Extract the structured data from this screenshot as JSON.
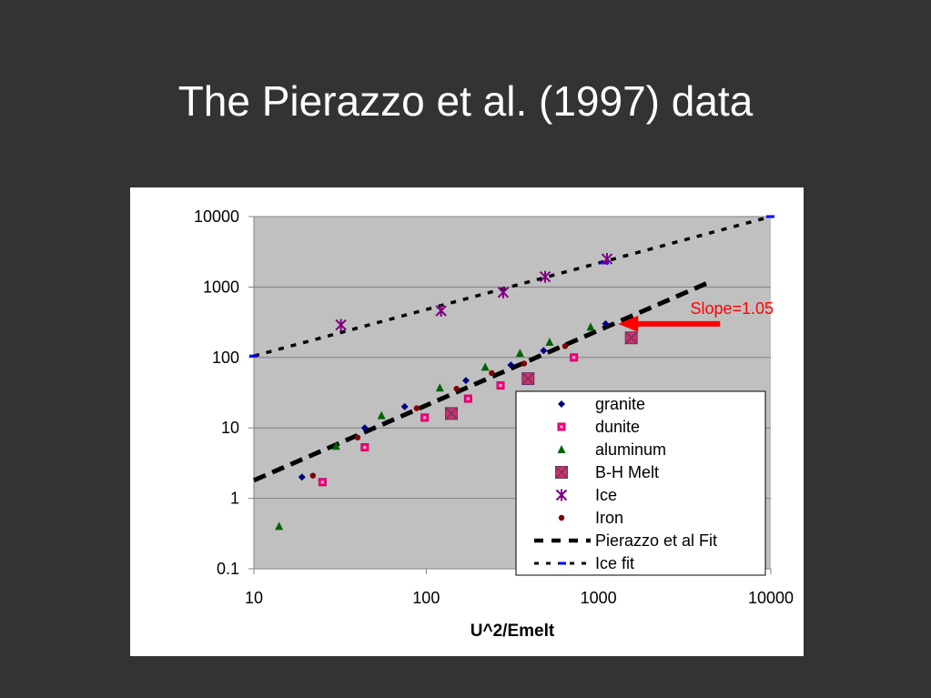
{
  "slide": {
    "title": "The Pierazzo et al. (1997) data"
  },
  "chart_data": {
    "type": "scatter",
    "xscale": "log",
    "yscale": "log",
    "xlim": [
      10,
      10000
    ],
    "ylim": [
      0.1,
      10000
    ],
    "xticks": [
      "10",
      "100",
      "1000",
      "10000"
    ],
    "yticks": [
      "0.1",
      "1",
      "10",
      "100",
      "1000",
      "10000"
    ],
    "xlabel": "U^2/Emelt",
    "ylabel": "",
    "grid": "horizontal",
    "legend_position": "bottom-right",
    "annotation": {
      "text": "Slope=1.05",
      "color": "#ff0000",
      "points_to": [
        1300,
        300
      ]
    },
    "series": [
      {
        "name": "granite",
        "marker": "diamond",
        "color": "#000080",
        "points": [
          [
            19,
            2
          ],
          [
            44,
            10
          ],
          [
            75,
            20
          ],
          [
            170,
            47
          ],
          [
            310,
            78
          ],
          [
            480,
            125
          ],
          [
            1100,
            300
          ]
        ]
      },
      {
        "name": "dunite",
        "marker": "square",
        "color": "#ff0080",
        "points": [
          [
            25,
            1.7
          ],
          [
            44,
            5.3
          ],
          [
            98,
            14
          ],
          [
            175,
            26
          ],
          [
            270,
            40
          ],
          [
            720,
            100
          ]
        ]
      },
      {
        "name": "aluminum",
        "marker": "triangle",
        "color": "#006400",
        "points": [
          [
            14,
            0.4
          ],
          [
            30,
            5.5
          ],
          [
            55,
            15
          ],
          [
            120,
            37
          ],
          [
            220,
            73
          ],
          [
            350,
            115
          ],
          [
            520,
            165
          ],
          [
            900,
            270
          ]
        ]
      },
      {
        "name": "B-H Melt",
        "marker": "crossed-square",
        "color": "#cc3366",
        "points": [
          [
            140,
            16
          ],
          [
            390,
            50
          ],
          [
            1550,
            190
          ]
        ]
      },
      {
        "name": "Ice",
        "marker": "asterisk",
        "color": "#800080",
        "points": [
          [
            32,
            290
          ],
          [
            122,
            460
          ],
          [
            280,
            840
          ],
          [
            490,
            1400
          ],
          [
            1120,
            2500
          ]
        ]
      },
      {
        "name": "Iron",
        "marker": "circle",
        "color": "#800000",
        "points": [
          [
            22,
            2.1
          ],
          [
            40,
            7.3
          ],
          [
            88,
            19
          ],
          [
            150,
            36
          ],
          [
            240,
            60
          ],
          [
            370,
            82
          ],
          [
            640,
            145
          ]
        ]
      },
      {
        "name": "Pierazzo et al  Fit",
        "marker": "none",
        "line": "long-dash",
        "color": "#000000",
        "points": [
          [
            10,
            1.8
          ],
          [
            4500,
            1200
          ]
        ]
      },
      {
        "name": "Ice fit",
        "marker": "none",
        "line": "short-dash",
        "color": "#000000",
        "points": [
          [
            10,
            105
          ],
          [
            10000,
            10000
          ]
        ]
      }
    ]
  }
}
